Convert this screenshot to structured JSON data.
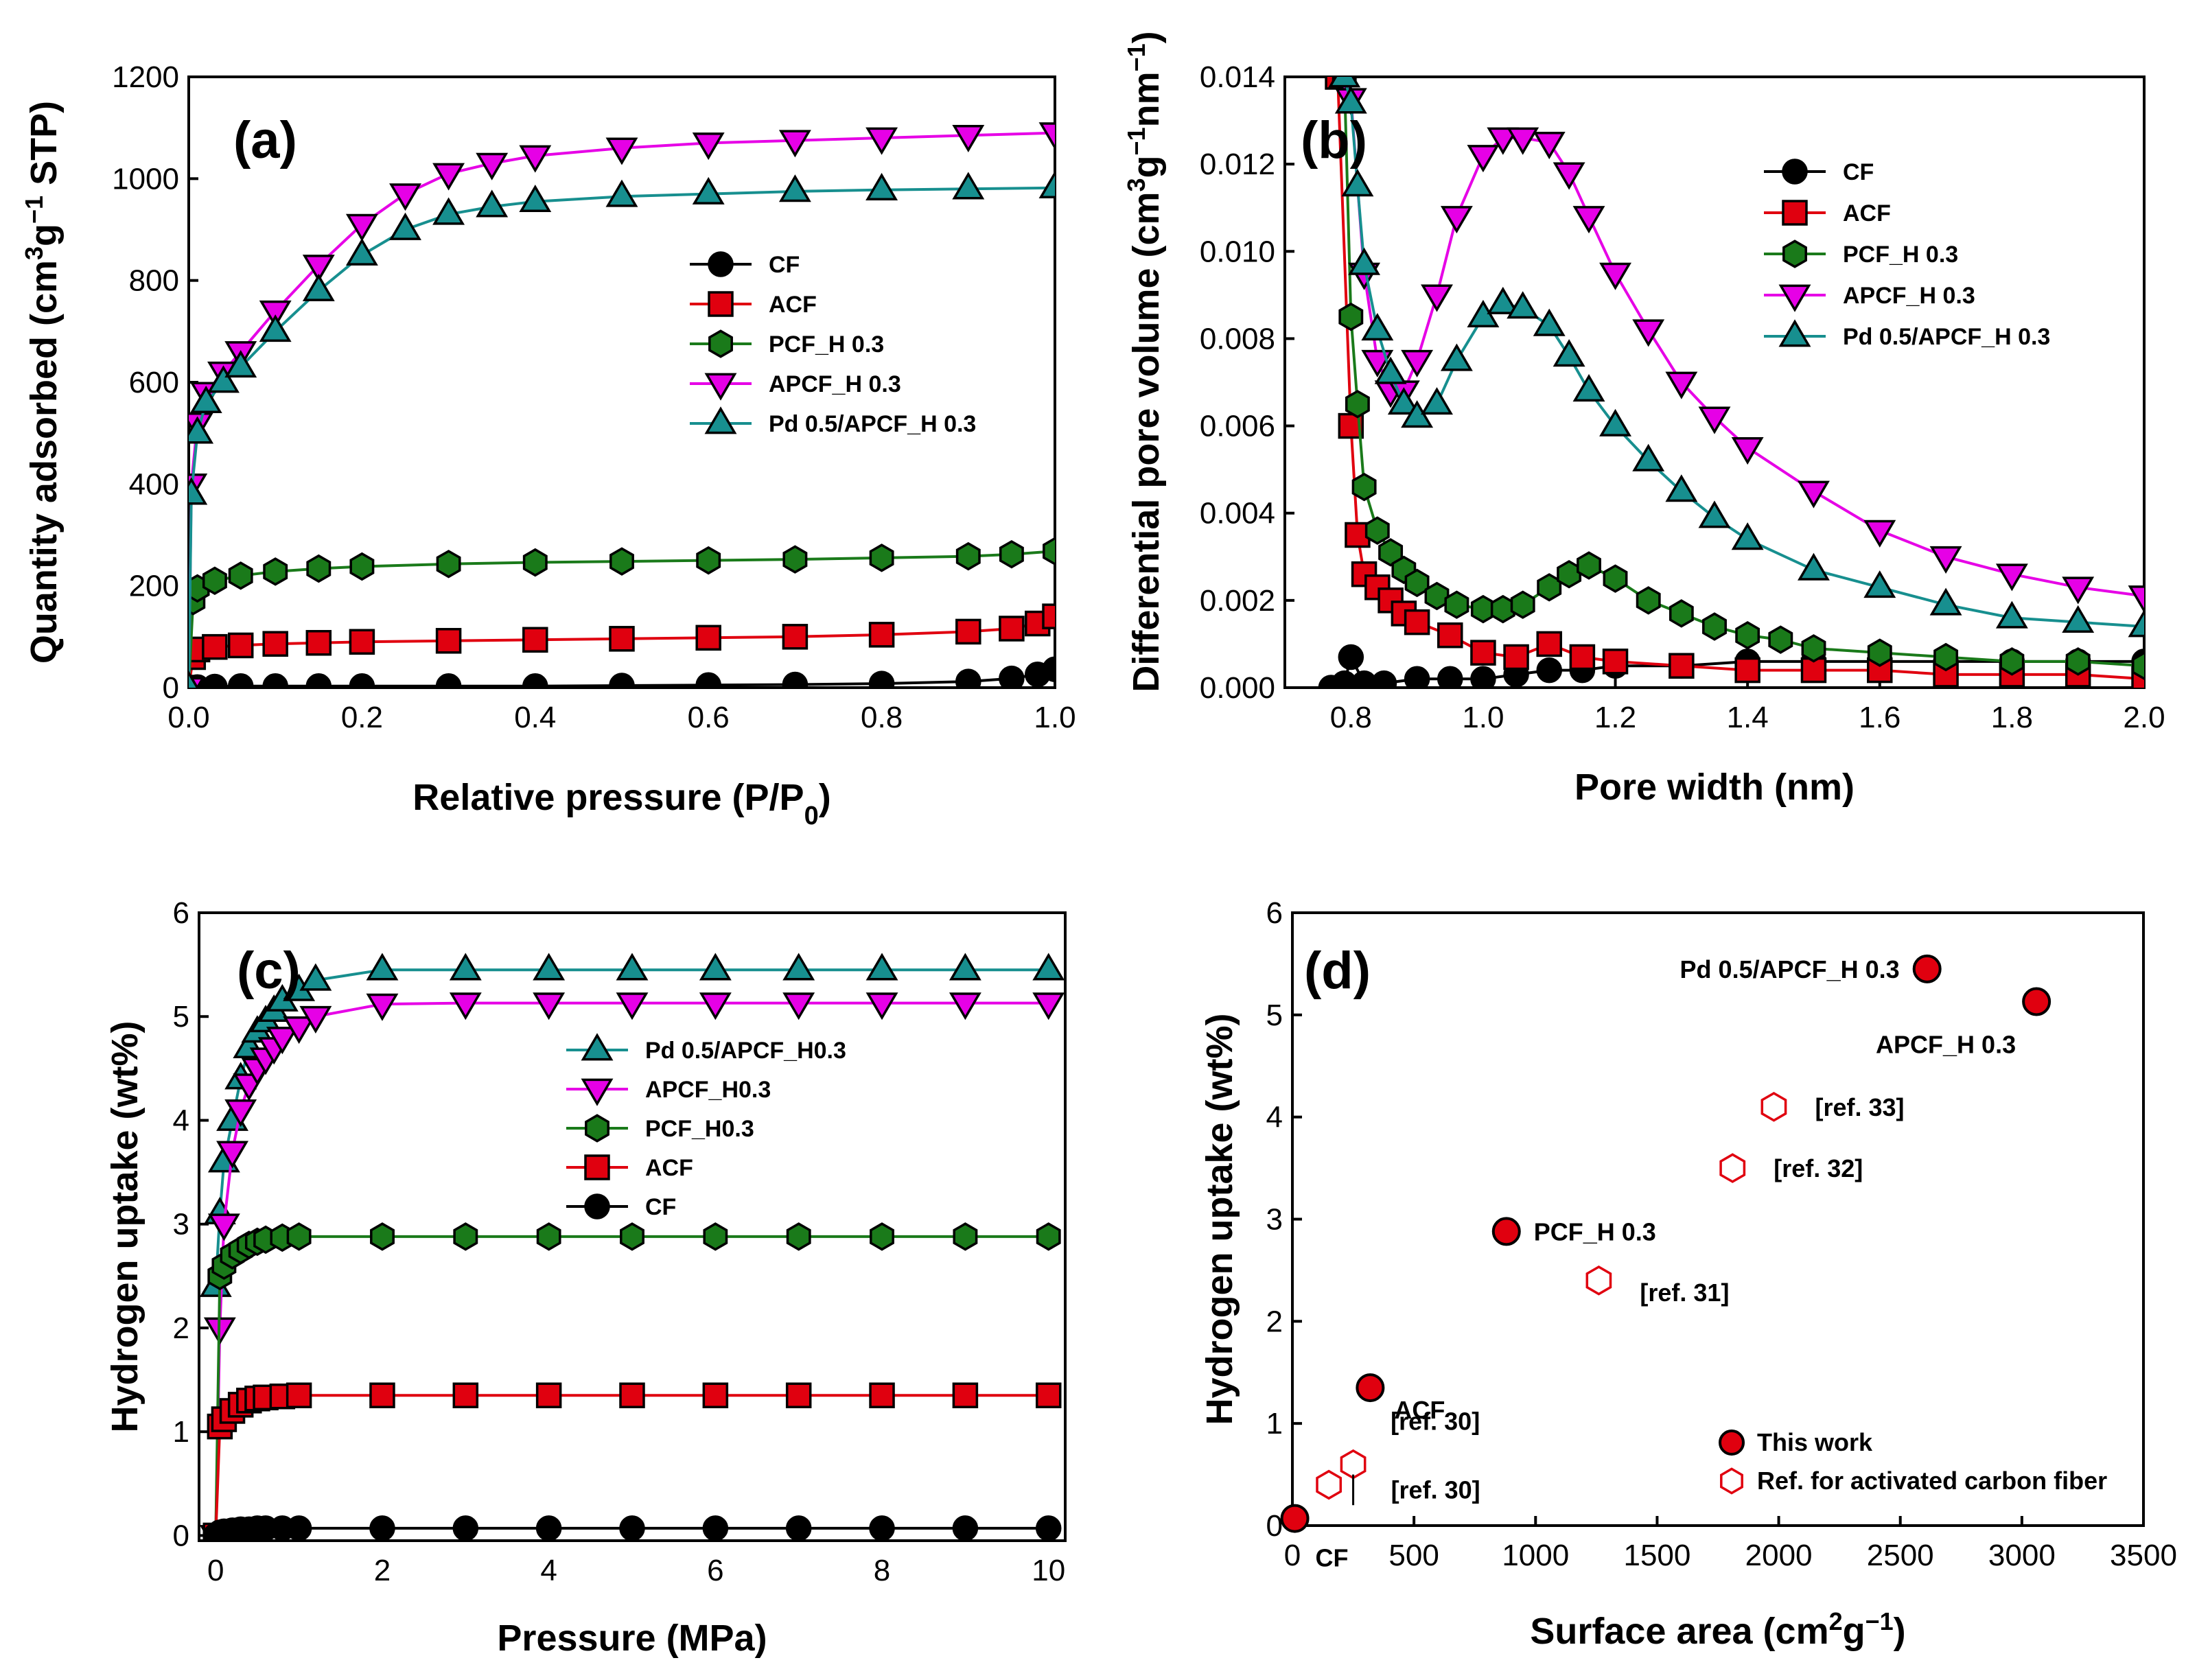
{
  "figure": {
    "panels": [
      "a",
      "b",
      "c",
      "d"
    ]
  },
  "colors": {
    "CF": "#000000",
    "ACF": "#e0000f",
    "PCF": "#1a7a1a",
    "APCF": "#e600e6",
    "Pd": "#178f8f"
  },
  "chart_data": [
    {
      "panel": "(a)",
      "type": "line",
      "xlabel": "Relative pressure (P/P",
      "xlabel_sub": "0",
      "xlabel_end": ")",
      "ylabel": "Quantity adsorbed (cm",
      "ylabel_sup": "3",
      "ylabel_mid": "g",
      "ylabel_sup2": "−1",
      "ylabel_end": " STP)",
      "xlim": [
        0,
        1
      ],
      "ylim": [
        0,
        1200
      ],
      "xticks": [
        0.0,
        0.2,
        0.4,
        0.6,
        0.8,
        1.0
      ],
      "xtick_labels": [
        "0.0",
        "0.2",
        "0.4",
        "0.6",
        "0.8",
        "1.0"
      ],
      "yticks": [
        0,
        200,
        400,
        600,
        800,
        1000,
        1200
      ],
      "ytick_labels": [
        "0",
        "200",
        "400",
        "600",
        "800",
        "1000",
        "1200"
      ],
      "legend": [
        "CF",
        "ACF",
        "PCF_H 0.3",
        "APCF_H 0.3",
        "Pd 0.5/APCF_H 0.3"
      ],
      "series": [
        {
          "name": "CF",
          "marker": "circle",
          "color": "#000000",
          "x": [
            0,
            0.01,
            0.03,
            0.06,
            0.1,
            0.15,
            0.2,
            0.3,
            0.4,
            0.5,
            0.6,
            0.7,
            0.8,
            0.9,
            0.95,
            0.98,
            1.0
          ],
          "y": [
            0,
            1,
            2,
            3,
            3,
            3,
            3,
            3,
            3,
            4,
            5,
            6,
            8,
            12,
            18,
            26,
            36
          ]
        },
        {
          "name": "ACF",
          "marker": "square",
          "color": "#e0000f",
          "x": [
            0,
            0.005,
            0.01,
            0.03,
            0.06,
            0.1,
            0.15,
            0.2,
            0.3,
            0.4,
            0.5,
            0.6,
            0.7,
            0.8,
            0.9,
            0.95,
            0.98,
            1.0
          ],
          "y": [
            0,
            60,
            75,
            80,
            83,
            86,
            88,
            90,
            92,
            94,
            96,
            98,
            100,
            104,
            110,
            116,
            126,
            140
          ]
        },
        {
          "name": "PCF_H 0.3",
          "marker": "hexagon",
          "color": "#1a7a1a",
          "x": [
            0,
            0.005,
            0.01,
            0.03,
            0.06,
            0.1,
            0.15,
            0.2,
            0.3,
            0.4,
            0.5,
            0.6,
            0.7,
            0.8,
            0.9,
            0.95,
            1.0
          ],
          "y": [
            0,
            170,
            195,
            210,
            220,
            228,
            234,
            238,
            243,
            246,
            248,
            250,
            252,
            255,
            258,
            262,
            268
          ]
        },
        {
          "name": "APCF_H 0.3",
          "marker": "tri-down",
          "color": "#e600e6",
          "x": [
            0,
            0.003,
            0.01,
            0.02,
            0.04,
            0.06,
            0.1,
            0.15,
            0.2,
            0.25,
            0.3,
            0.35,
            0.4,
            0.5,
            0.6,
            0.7,
            0.8,
            0.9,
            1.0
          ],
          "y": [
            0,
            400,
            520,
            580,
            620,
            660,
            740,
            830,
            910,
            970,
            1010,
            1030,
            1045,
            1060,
            1070,
            1075,
            1080,
            1085,
            1090
          ]
        },
        {
          "name": "Pd 0.5/APCF_H 0.3",
          "marker": "tri-up",
          "color": "#178f8f",
          "x": [
            0,
            0.003,
            0.01,
            0.02,
            0.04,
            0.06,
            0.1,
            0.15,
            0.2,
            0.25,
            0.3,
            0.35,
            0.4,
            0.5,
            0.6,
            0.7,
            0.8,
            0.9,
            1.0
          ],
          "y": [
            0,
            380,
            500,
            560,
            600,
            630,
            700,
            780,
            850,
            900,
            930,
            945,
            955,
            965,
            970,
            975,
            978,
            980,
            982
          ]
        }
      ]
    },
    {
      "panel": "(b)",
      "type": "line",
      "xlabel": "Pore width (nm)",
      "ylabel": "Differential pore volume (cm",
      "ylabel_sup": "3",
      "ylabel_mid": "g",
      "ylabel_sup2": "−1",
      "ylabel_mid2": "nm",
      "ylabel_sup3": "−1",
      "ylabel_end": ")",
      "xlim": [
        0.7,
        2.0
      ],
      "ylim": [
        0,
        0.014
      ],
      "xticks": [
        0.8,
        1.0,
        1.2,
        1.4,
        1.6,
        1.8,
        2.0
      ],
      "xtick_labels": [
        "0.8",
        "1.0",
        "1.2",
        "1.4",
        "1.6",
        "1.8",
        "2.0"
      ],
      "yticks": [
        0,
        0.002,
        0.004,
        0.006,
        0.008,
        0.01,
        0.012,
        0.014
      ],
      "ytick_labels": [
        "0.000",
        "0.002",
        "0.004",
        "0.006",
        "0.008",
        "0.010",
        "0.012",
        "0.014"
      ],
      "legend": [
        "CF",
        "ACF",
        "PCF_H 0.3",
        "APCF_H 0.3",
        "Pd 0.5/APCF_H 0.3"
      ],
      "series": [
        {
          "name": "CF",
          "marker": "circle",
          "color": "#000000",
          "x": [
            0.77,
            0.79,
            0.8,
            0.82,
            0.85,
            0.9,
            0.95,
            1.0,
            1.05,
            1.1,
            1.15,
            1.2,
            1.3,
            1.4,
            1.5,
            1.6,
            1.7,
            1.8,
            1.9,
            2.0
          ],
          "y": [
            0,
            0.0001,
            0.0007,
            0.0001,
            0.0001,
            0.0002,
            0.0002,
            0.0002,
            0.0003,
            0.0004,
            0.0004,
            0.0005,
            0.0005,
            0.0006,
            0.0006,
            0.0006,
            0.0006,
            0.0006,
            0.0006,
            0.0006
          ]
        },
        {
          "name": "ACF",
          "marker": "square",
          "color": "#e0000f",
          "x": [
            0.78,
            0.8,
            0.81,
            0.82,
            0.84,
            0.86,
            0.88,
            0.9,
            0.95,
            1.0,
            1.05,
            1.1,
            1.15,
            1.2,
            1.3,
            1.4,
            1.5,
            1.6,
            1.7,
            1.8,
            1.9,
            2.0
          ],
          "y": [
            0.014,
            0.006,
            0.0035,
            0.0026,
            0.0023,
            0.002,
            0.0017,
            0.0015,
            0.0012,
            0.0008,
            0.0007,
            0.001,
            0.0007,
            0.0006,
            0.0005,
            0.0004,
            0.0004,
            0.0004,
            0.0003,
            0.0003,
            0.0003,
            0.0002
          ]
        },
        {
          "name": "PCF_H 0.3",
          "marker": "hexagon",
          "color": "#1a7a1a",
          "x": [
            0.79,
            0.8,
            0.81,
            0.82,
            0.84,
            0.86,
            0.88,
            0.9,
            0.93,
            0.96,
            1.0,
            1.03,
            1.06,
            1.1,
            1.13,
            1.16,
            1.2,
            1.25,
            1.3,
            1.35,
            1.4,
            1.45,
            1.5,
            1.6,
            1.7,
            1.8,
            1.9,
            2.0
          ],
          "y": [
            0.014,
            0.0085,
            0.0065,
            0.0046,
            0.0036,
            0.0031,
            0.0027,
            0.0024,
            0.0021,
            0.0019,
            0.0018,
            0.0018,
            0.0019,
            0.0023,
            0.0026,
            0.0028,
            0.0025,
            0.002,
            0.0017,
            0.0014,
            0.0012,
            0.0011,
            0.0009,
            0.0008,
            0.0007,
            0.0006,
            0.0006,
            0.0005
          ]
        },
        {
          "name": "APCF_H 0.3",
          "marker": "tri-down",
          "color": "#e600e6",
          "x": [
            0.79,
            0.8,
            0.82,
            0.84,
            0.86,
            0.88,
            0.9,
            0.93,
            0.96,
            1.0,
            1.03,
            1.06,
            1.1,
            1.13,
            1.16,
            1.2,
            1.25,
            1.3,
            1.35,
            1.4,
            1.5,
            1.6,
            1.7,
            1.8,
            1.9,
            2.0
          ],
          "y": [
            0.014,
            0.0135,
            0.0095,
            0.0075,
            0.0068,
            0.0068,
            0.0075,
            0.009,
            0.0108,
            0.0122,
            0.0126,
            0.0126,
            0.0125,
            0.0118,
            0.0108,
            0.0095,
            0.0082,
            0.007,
            0.0062,
            0.0055,
            0.0045,
            0.0036,
            0.003,
            0.0026,
            0.0023,
            0.0021
          ]
        },
        {
          "name": "Pd 0.5/APCF_H 0.3",
          "marker": "tri-up",
          "color": "#178f8f",
          "x": [
            0.79,
            0.8,
            0.81,
            0.82,
            0.84,
            0.86,
            0.88,
            0.9,
            0.93,
            0.96,
            1.0,
            1.03,
            1.06,
            1.1,
            1.13,
            1.16,
            1.2,
            1.25,
            1.3,
            1.35,
            1.4,
            1.5,
            1.6,
            1.7,
            1.8,
            1.9,
            2.0
          ],
          "y": [
            0.014,
            0.0134,
            0.0115,
            0.0097,
            0.0082,
            0.0072,
            0.0065,
            0.0062,
            0.0065,
            0.0075,
            0.0085,
            0.0088,
            0.0087,
            0.0083,
            0.0076,
            0.0068,
            0.006,
            0.0052,
            0.0045,
            0.0039,
            0.0034,
            0.0027,
            0.0023,
            0.0019,
            0.0016,
            0.0015,
            0.0014
          ]
        }
      ]
    },
    {
      "panel": "(c)",
      "type": "line",
      "xlabel": "Pressure (MPa)",
      "ylabel": "Hydrogen uptake (wt%)",
      "xlim": [
        -0.2,
        10.2
      ],
      "ylim": [
        -0.05,
        6
      ],
      "xticks": [
        0,
        2,
        4,
        6,
        8,
        10
      ],
      "xtick_labels": [
        "0",
        "2",
        "4",
        "6",
        "8",
        "10"
      ],
      "yticks": [
        0,
        1,
        2,
        3,
        4,
        5,
        6
      ],
      "ytick_labels": [
        "0",
        "1",
        "2",
        "3",
        "4",
        "5",
        "6"
      ],
      "legend": [
        "Pd 0.5/APCF_H0.3",
        "APCF_H0.3",
        "PCF_H0.3",
        "ACF",
        "CF"
      ],
      "series": [
        {
          "name": "Pd 0.5/APCF_H0.3",
          "marker": "tri-up",
          "color": "#178f8f",
          "x": [
            0,
            0.05,
            0.1,
            0.2,
            0.3,
            0.4,
            0.5,
            0.6,
            0.7,
            0.8,
            1.0,
            1.2,
            2,
            3,
            4,
            5,
            6,
            7,
            8,
            9,
            10
          ],
          "y": [
            2.4,
            3.1,
            3.6,
            4.0,
            4.4,
            4.7,
            4.85,
            4.95,
            5.05,
            5.15,
            5.25,
            5.35,
            5.45,
            5.45,
            5.45,
            5.45,
            5.45,
            5.45,
            5.45,
            5.45,
            5.45
          ]
        },
        {
          "name": "APCF_H0.3",
          "marker": "tri-down",
          "color": "#e600e6",
          "x": [
            0,
            0.05,
            0.1,
            0.2,
            0.3,
            0.4,
            0.5,
            0.6,
            0.7,
            0.8,
            1.0,
            1.2,
            2,
            3,
            4,
            5,
            6,
            7,
            8,
            9,
            10
          ],
          "y": [
            0,
            2.0,
            3.0,
            3.7,
            4.1,
            4.35,
            4.5,
            4.6,
            4.7,
            4.8,
            4.9,
            5.0,
            5.12,
            5.13,
            5.13,
            5.13,
            5.13,
            5.13,
            5.13,
            5.13,
            5.13
          ]
        },
        {
          "name": "PCF_H0.3",
          "marker": "hexagon",
          "color": "#1a7a1a",
          "x": [
            0,
            0.05,
            0.1,
            0.2,
            0.3,
            0.4,
            0.5,
            0.6,
            0.8,
            1.0,
            2,
            3,
            4,
            5,
            6,
            7,
            8,
            9,
            10
          ],
          "y": [
            0,
            2.5,
            2.6,
            2.7,
            2.75,
            2.8,
            2.83,
            2.85,
            2.87,
            2.88,
            2.88,
            2.88,
            2.88,
            2.88,
            2.88,
            2.88,
            2.88,
            2.88,
            2.88
          ]
        },
        {
          "name": "ACF",
          "marker": "square",
          "color": "#e0000f",
          "x": [
            0,
            0.05,
            0.1,
            0.2,
            0.3,
            0.4,
            0.5,
            0.6,
            0.8,
            1.0,
            2,
            3,
            4,
            5,
            6,
            7,
            8,
            9,
            10
          ],
          "y": [
            0,
            1.05,
            1.12,
            1.2,
            1.26,
            1.3,
            1.32,
            1.33,
            1.34,
            1.35,
            1.35,
            1.35,
            1.35,
            1.35,
            1.35,
            1.35,
            1.35,
            1.35,
            1.35
          ]
        },
        {
          "name": "CF",
          "marker": "circle",
          "color": "#000000",
          "x": [
            0,
            0.05,
            0.1,
            0.2,
            0.3,
            0.4,
            0.5,
            0.6,
            0.8,
            1.0,
            2,
            3,
            4,
            5,
            6,
            7,
            8,
            9,
            10
          ],
          "y": [
            0,
            0.03,
            0.04,
            0.05,
            0.06,
            0.06,
            0.07,
            0.07,
            0.07,
            0.07,
            0.07,
            0.07,
            0.07,
            0.07,
            0.07,
            0.07,
            0.07,
            0.07,
            0.07
          ]
        }
      ]
    },
    {
      "panel": "(d)",
      "type": "scatter",
      "xlabel": "Surface area (cm",
      "xlabel_sup": "2",
      "xlabel_mid": "g",
      "xlabel_sup2": "−1",
      "xlabel_end": ")",
      "ylabel": "Hydrogen uptake (wt%)",
      "xlim": [
        0,
        3500
      ],
      "ylim": [
        0,
        6
      ],
      "xticks": [
        0,
        500,
        1000,
        1500,
        2000,
        2500,
        3000,
        3500
      ],
      "xtick_labels": [
        "0",
        "500",
        "1000",
        "1500",
        "2000",
        "2500",
        "3000",
        "3500"
      ],
      "yticks": [
        0,
        1,
        2,
        3,
        4,
        5,
        6
      ],
      "ytick_labels": [
        "0",
        "1",
        "2",
        "3",
        "4",
        "5",
        "6"
      ],
      "legend": [
        "This work",
        "Ref. for activated carbon fiber"
      ],
      "points": [
        {
          "group": "this_work",
          "label": "CF",
          "x": 10,
          "y": 0.07
        },
        {
          "group": "this_work",
          "label": "ACF",
          "x": 320,
          "y": 1.35
        },
        {
          "group": "this_work",
          "label": "PCF_H 0.3",
          "x": 880,
          "y": 2.88
        },
        {
          "group": "this_work",
          "label": "Pd 0.5/APCF_H 0.3",
          "x": 2610,
          "y": 5.45
        },
        {
          "group": "this_work",
          "label": "APCF_H 0.3",
          "x": 3060,
          "y": 5.13
        },
        {
          "group": "reference",
          "label": "[ref. 30]",
          "x": 150,
          "y": 0.4
        },
        {
          "group": "reference",
          "label": "[ref. 30]",
          "x": 250,
          "y": 0.6
        },
        {
          "group": "reference",
          "label": "[ref. 31]",
          "x": 1260,
          "y": 2.4
        },
        {
          "group": "reference",
          "label": "[ref. 32]",
          "x": 1810,
          "y": 3.5
        },
        {
          "group": "reference",
          "label": "[ref. 33]",
          "x": 1980,
          "y": 4.1
        }
      ]
    }
  ]
}
